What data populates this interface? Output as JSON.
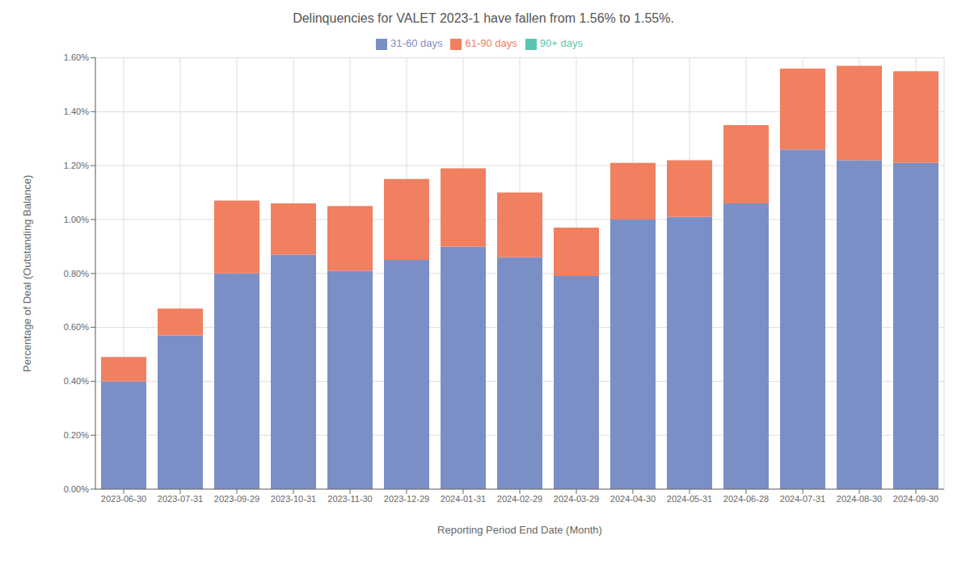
{
  "chart_data": {
    "type": "bar",
    "stacked": true,
    "title": "Delinquencies for VALET 2023-1 have fallen from 1.56% to 1.55%.",
    "xlabel": "Reporting Period End Date (Month)",
    "ylabel": "Percentage of Deal (Outstanding Balance)",
    "categories": [
      "2023-06-30",
      "2023-07-31",
      "2023-09-29",
      "2023-10-31",
      "2023-11-30",
      "2023-12-29",
      "2024-01-31",
      "2024-02-29",
      "2024-03-29",
      "2024-04-30",
      "2024-05-31",
      "2024-06-28",
      "2024-07-31",
      "2024-08-30",
      "2024-09-30"
    ],
    "series": [
      {
        "name": "31-60 days",
        "color": "#7b8fc7",
        "values": [
          0.004,
          0.0057,
          0.008,
          0.0087,
          0.0081,
          0.0085,
          0.009,
          0.0086,
          0.0079,
          0.01,
          0.0101,
          0.0106,
          0.0126,
          0.0122,
          0.0121
        ]
      },
      {
        "name": "61-90 days",
        "color": "#f08060",
        "values": [
          0.0009,
          0.001,
          0.0027,
          0.0019,
          0.0024,
          0.003,
          0.0029,
          0.0024,
          0.0018,
          0.0021,
          0.0021,
          0.0029,
          0.003,
          0.0035,
          0.0034
        ]
      },
      {
        "name": "90+ days",
        "color": "#5bc4b0",
        "values": [
          0.0,
          0.0,
          0.0,
          0.0,
          0.0,
          0.0,
          0.0,
          0.0,
          0.0,
          0.0,
          0.0,
          0.0,
          0.0,
          0.0,
          0.0
        ]
      }
    ],
    "ylim": [
      0.0,
      0.016
    ],
    "yticks": [
      {
        "value": 0.0,
        "label": "0.00%"
      },
      {
        "value": 0.002,
        "label": "0.20%"
      },
      {
        "value": 0.004,
        "label": "0.40%"
      },
      {
        "value": 0.006,
        "label": "0.60%"
      },
      {
        "value": 0.008,
        "label": "0.80%"
      },
      {
        "value": 0.01,
        "label": "1.00%"
      },
      {
        "value": 0.012,
        "label": "1.20%"
      },
      {
        "value": 0.014,
        "label": "1.40%"
      },
      {
        "value": 0.016,
        "label": "1.60%"
      }
    ],
    "grid": true,
    "legend": "top"
  }
}
